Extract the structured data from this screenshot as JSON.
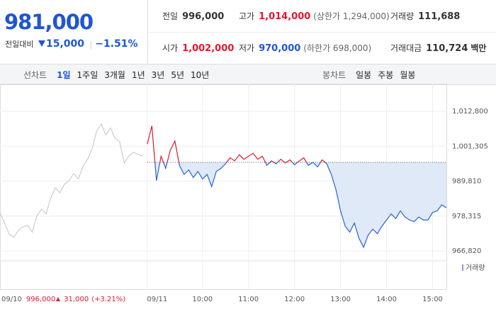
{
  "quote": {
    "price": "981,000",
    "change_label": "전일대비",
    "change": "15,000",
    "change_rate": "−1.51%"
  },
  "stats": [
    {
      "label": "전일",
      "value": "996,000"
    },
    {
      "label": "고가",
      "value": "1,014,000",
      "note": "(상한가 1,294,000)"
    },
    {
      "label": "거래량",
      "value": "111,688"
    },
    {
      "label": "시가",
      "value": "1,002,000"
    },
    {
      "label": "저가",
      "value": "970,000",
      "note": "(하한가 698,000)"
    },
    {
      "label": "거래대금",
      "value": "110,724",
      "unit": "백만"
    }
  ],
  "line_tabs": {
    "label": "선차트",
    "items": [
      "1일",
      "1주일",
      "3개월",
      "1년",
      "3년",
      "5년",
      "10년"
    ],
    "selected": 0
  },
  "candle_tabs": {
    "label": "봉차트",
    "items": [
      "일봉",
      "주봉",
      "월봉"
    ]
  },
  "prev_info": {
    "date": "09/10",
    "close": "996,000",
    "change": "31,000",
    "change_rate": "(+3.21%)"
  },
  "chart_data": {
    "type": "line",
    "legend": "거래량",
    "reference_line": 996000,
    "xlim": [
      0,
      97
    ],
    "xticks": [
      {
        "value": 32,
        "label": "09/11"
      },
      {
        "value": 44,
        "label": "10:00"
      },
      {
        "value": 54,
        "label": "11:00"
      },
      {
        "value": 64,
        "label": "12:00"
      },
      {
        "value": 74,
        "label": "13:00"
      },
      {
        "value": 84,
        "label": "14:00"
      },
      {
        "value": 94,
        "label": "15:00"
      }
    ],
    "ylim": [
      966820,
      1012800
    ],
    "yticks": [
      {
        "value": 966820,
        "label": "966,820"
      },
      {
        "value": 978315,
        "label": "978,315"
      },
      {
        "value": 989810,
        "label": "989,810"
      },
      {
        "value": 1001305,
        "label": "1,001,305"
      },
      {
        "value": 1012800,
        "label": "1,012,800"
      }
    ],
    "up_color": "#e0182d",
    "down_color": "#2a62d6",
    "area_color": "#dfe9f8",
    "series": [
      {
        "color": "#c4c4c4",
        "values": [
          979400,
          975900,
          972400,
          971300,
          973600,
          974800,
          975200,
          973000,
          978300,
          980600,
          979000,
          984100,
          987600,
          986000,
          988800,
          989900,
          992300,
          990500,
          994600,
          996900,
          1000400,
          1006300,
          1008600,
          1005000,
          1007400,
          1003900,
          1002800,
          995800,
          998100,
          999300,
          998600,
          998100,
          null,
          null,
          null,
          null,
          null,
          null,
          null,
          null,
          null,
          null,
          null,
          null,
          null,
          null,
          null,
          null,
          null,
          null,
          null,
          null,
          null,
          null,
          null,
          null,
          null,
          null,
          null,
          null,
          null,
          null,
          null,
          null,
          null,
          null,
          null,
          null,
          null,
          null,
          null,
          null,
          null,
          null,
          null,
          null,
          null,
          null,
          null,
          null,
          null,
          null,
          null,
          null,
          null,
          null,
          null,
          null,
          null,
          null,
          null,
          null,
          null,
          null,
          null,
          null
        ]
      },
      {
        "color": "#2a62d6",
        "values": [
          null,
          null,
          null,
          null,
          null,
          null,
          null,
          null,
          null,
          null,
          null,
          null,
          null,
          null,
          null,
          null,
          null,
          null,
          null,
          null,
          null,
          null,
          null,
          null,
          null,
          null,
          null,
          null,
          null,
          null,
          null,
          null,
          1002000,
          1008000,
          990000,
          998000,
          994000,
          1000000,
          1003000,
          995000,
          992000,
          993500,
          991000,
          993000,
          990500,
          992000,
          988000,
          993000,
          994000,
          995500,
          997500,
          996500,
          998500,
          997000,
          998000,
          999000,
          997000,
          998000,
          995000,
          996500,
          995500,
          997000,
          995800,
          996800,
          995200,
          996400,
          997500,
          995000,
          996000,
          994500,
          996800,
          995500,
          992000,
          987000,
          980000,
          975000,
          973000,
          976000,
          971000,
          968000,
          972000,
          974000,
          972500,
          975000,
          977000,
          979000,
          977500,
          980000,
          978000,
          977000,
          976500,
          978000,
          977000,
          977000,
          979500,
          980000,
          982000,
          981000
        ]
      }
    ]
  }
}
